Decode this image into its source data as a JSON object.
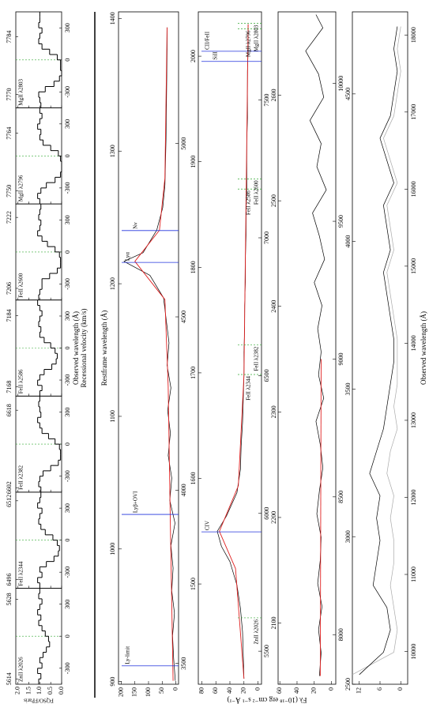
{
  "chart_data": [
    {
      "type": "step",
      "xlabel": "Recessional velocity (km/s)",
      "wlabel": "Observed wavelength (Å)",
      "ylabel": "FQSO/FParis",
      "xlim": [
        -450,
        450
      ],
      "xticks": [
        -300,
        0,
        300
      ],
      "ylim": [
        0,
        2.1
      ],
      "yticks": [
        {
          "value": 0,
          "label": "0.0"
        },
        {
          "value": 0.5,
          "label": "0.5"
        },
        {
          "value": 1,
          "label": "1.0"
        },
        {
          "value": 1.5,
          "label": "1.5"
        },
        {
          "value": 2,
          "label": "2.0"
        }
      ],
      "color": "#000000",
      "panels": [
        {
          "label": "ZnII λ2026",
          "wlim": [
            5613.06,
            5629.94
          ],
          "wticks": [
            5614,
            5628
          ],
          "flux": [
            1.05,
            0.95,
            1.1,
            0.9,
            1.0,
            0.85,
            0.7,
            0.55,
            0.6,
            0.75,
            0.9,
            1.05,
            0.95,
            1.1,
            1.0,
            0.9,
            1.05,
            1.0
          ]
        },
        {
          "label": "FeII λ2344",
          "wlim": [
            6494.24,
            6513.76
          ],
          "wticks": [
            6496,
            6512
          ],
          "flux": [
            1.0,
            1.1,
            0.9,
            1.0,
            0.7,
            0.35,
            0.15,
            0.1,
            0.2,
            0.4,
            0.75,
            0.95,
            1.05,
            1.0,
            0.9,
            1.1,
            1.0,
            0.95
          ]
        },
        {
          "label": "FeII λ2382",
          "wlim": [
            6601.08,
            6620.92
          ],
          "wticks": [
            6602,
            6618
          ],
          "flux": [
            0.95,
            1.05,
            1.0,
            0.85,
            0.5,
            0.15,
            0.05,
            0.05,
            0.1,
            0.3,
            0.6,
            0.9,
            1.0,
            1.1,
            0.95,
            1.0,
            1.05,
            1.0
          ]
        },
        {
          "label": "FeII λ2586",
          "wlim": [
            7165.93,
            7187.47
          ],
          "wticks": [
            7168,
            7184
          ],
          "flux": [
            1.0,
            0.9,
            1.1,
            1.0,
            0.8,
            0.45,
            0.25,
            0.2,
            0.3,
            0.5,
            0.8,
            1.0,
            0.95,
            1.05,
            1.0,
            0.9,
            1.0,
            1.1
          ]
        },
        {
          "label": "FeII λ2600",
          "wlim": [
            7203.37,
            7225.03
          ],
          "wticks": [
            7206,
            7222
          ],
          "flux": [
            1.05,
            1.0,
            0.9,
            0.9,
            0.55,
            0.2,
            0.05,
            0.05,
            0.1,
            0.3,
            0.65,
            0.9,
            1.1,
            1.0,
            0.95,
            1.05,
            1.0,
            0.95
          ]
        },
        {
          "label": "MgII λ2796",
          "wlim": [
            7746.85,
            7770.15
          ],
          "wticks": [
            7750,
            7764
          ],
          "flux": [
            1.0,
            1.1,
            0.95,
            0.7,
            0.3,
            0.05,
            0.0,
            0.0,
            0.05,
            0.15,
            0.5,
            0.85,
            1.0,
            0.95,
            1.1,
            1.0,
            0.9,
            1.0
          ]
        },
        {
          "label": "MgII λ2803",
          "wlim": [
            7766.72,
            7790.08
          ],
          "wticks": [
            7770,
            7784
          ],
          "flux": [
            0.95,
            1.0,
            1.05,
            0.75,
            0.35,
            0.1,
            0.0,
            0.05,
            0.05,
            0.2,
            0.55,
            0.9,
            1.05,
            1.0,
            0.9,
            1.05,
            1.0,
            1.0
          ]
        }
      ]
    },
    {
      "type": "line",
      "x2label": "Restframe wavelength (Å)",
      "ylabel": "Fλ (10⁻¹⁸ erg cm⁻² s⁻¹ Å⁻¹)",
      "xlim": [
        3440,
        5380
      ],
      "xticks": [
        3500,
        4000,
        4500,
        5000
      ],
      "x2lim": [
        898,
        1405
      ],
      "x2ticks": [
        900,
        1000,
        1100,
        1200,
        1300,
        1400
      ],
      "ylim": [
        -10,
        210
      ],
      "yticks": [
        0,
        50,
        100,
        150,
        200
      ],
      "x": [
        3450,
        3515,
        3580,
        3645,
        3710,
        3775,
        3840,
        3905,
        3970,
        4035,
        4100,
        4165,
        4230,
        4295,
        4360,
        4425,
        4490,
        4555,
        4620,
        4660,
        4685,
        4750,
        4815,
        4880,
        4945,
        5010,
        5075,
        5140,
        5205,
        5270,
        5335
      ],
      "series": [
        {
          "color": "#000000",
          "values": [
            2,
            8,
            12,
            5,
            15,
            10,
            18,
            3,
            22,
            15,
            28,
            20,
            30,
            18,
            32,
            25,
            35,
            45,
            95,
            190,
            120,
            70,
            48,
            40,
            38,
            36,
            35,
            34,
            33,
            32,
            32
          ]
        }
      ],
      "continuum": {
        "color": "#e02020",
        "x": [
          3450,
          3900,
          4300,
          4550,
          4660,
          4750,
          4900,
          5335
        ],
        "values": [
          10,
          20,
          28,
          40,
          150,
          60,
          40,
          32
        ]
      },
      "lines": [
        {
          "label": "Ly-limit",
          "x": 3493,
          "color": "#2233dd",
          "style": "solid"
        },
        {
          "label": "Lyβ+OVI",
          "x": 3930,
          "color": "#2233dd",
          "style": "solid"
        },
        {
          "label": "Lyα",
          "x": 4657,
          "color": "#2233dd",
          "style": "solid"
        },
        {
          "label": "Nv",
          "x": 4749,
          "color": "#2233dd",
          "style": "solid"
        }
      ]
    },
    {
      "type": "line",
      "xlim": [
        5380,
        7820
      ],
      "xticks": [
        5500,
        6000,
        6500,
        7000,
        7500
      ],
      "x2lim": [
        1405,
        2042
      ],
      "x2ticks": [
        1500,
        1600,
        1700,
        1800,
        1900,
        2000
      ],
      "ylim": [
        -5,
        85
      ],
      "yticks": [
        0,
        20,
        40,
        60,
        80
      ],
      "x": [
        5400,
        5485,
        5570,
        5655,
        5740,
        5825,
        5880,
        5935,
        5990,
        6075,
        6160,
        6245,
        6330,
        6415,
        6500,
        6585,
        6670,
        6755,
        6840,
        6925,
        7010,
        7095,
        7180,
        7265,
        7350,
        7435,
        7520,
        7605,
        7690,
        7775
      ],
      "series": [
        {
          "color": "#000000",
          "values": [
            20,
            21,
            22,
            25,
            30,
            40,
            52,
            58,
            45,
            30,
            25,
            24,
            22,
            21,
            20,
            20,
            19,
            19,
            18,
            18,
            17,
            17,
            16,
            16,
            16,
            15,
            15,
            15,
            14,
            14
          ]
        }
      ],
      "continuum": {
        "color": "#e02020",
        "x": [
          5400,
          5800,
          5935,
          6100,
          6500,
          7775
        ],
        "values": [
          20,
          32,
          55,
          28,
          20,
          14
        ]
      },
      "lines": [
        {
          "label": "CIV",
          "x": 5933,
          "color": "#2233dd",
          "style": "solid"
        },
        {
          "label": "SiII",
          "x": 7640,
          "color": "#2233dd",
          "style": "solid"
        },
        {
          "label": "CII/FeII",
          "x": 7677,
          "color": "#2233dd",
          "style": "solid"
        },
        {
          "label": "ZnII λ2026",
          "x": 5621,
          "color": "#33aa33",
          "style": "dashed"
        },
        {
          "label": "FeII λ2344",
          "x": 6504,
          "color": "#33aa33",
          "style": "dashed"
        },
        {
          "label": "FeII λ2382",
          "x": 6611,
          "color": "#33aa33",
          "style": "dashed"
        },
        {
          "label": "FeII λ2586",
          "x": 7177,
          "color": "#33aa33",
          "style": "dashed"
        },
        {
          "label": "FeII λ2600",
          "x": 7214,
          "color": "#33aa33",
          "style": "dashed"
        },
        {
          "label": "MgII λ2796",
          "x": 7758,
          "color": "#33aa33",
          "style": "dashed"
        },
        {
          "label": "MgII λ2803",
          "x": 7778,
          "color": "#33aa33",
          "style": "dashed"
        }
      ]
    },
    {
      "type": "line",
      "xlim": [
        7820,
        10260
      ],
      "xticks": [
        8000,
        8500,
        9000,
        9500,
        10000
      ],
      "x2lim": [
        2042,
        2679
      ],
      "x2ticks": [
        2100,
        2200,
        2300,
        2400,
        2500,
        2600
      ],
      "ylim": [
        -5,
        62
      ],
      "yticks": [
        0,
        20,
        40,
        60
      ],
      "x": [
        7850,
        7934,
        8018,
        8102,
        8186,
        8270,
        8354,
        8438,
        8522,
        8606,
        8690,
        8774,
        8858,
        8942,
        9026,
        9110,
        9194,
        9278,
        9362,
        9446,
        9530,
        9614,
        9698,
        9782,
        9866,
        9950,
        10034,
        10118,
        10202,
        10250
      ],
      "series": [
        {
          "color": "#000000",
          "values": [
            14,
            12,
            15,
            11,
            16,
            13,
            12,
            17,
            14,
            10,
            13,
            18,
            9,
            15,
            12,
            16,
            11,
            20,
            8,
            14,
            22,
            6,
            17,
            12,
            25,
            9,
            15,
            30,
            10,
            18
          ]
        }
      ],
      "continuum": {
        "color": "#e02020",
        "x": [
          7850,
          9000
        ],
        "values": [
          13,
          12
        ]
      },
      "lines": []
    },
    {
      "type": "line",
      "xlabel": "Observed wavelength (Å)",
      "xlim": [
        9575,
        18300
      ],
      "xticks": [
        10000,
        11000,
        12000,
        13000,
        14000,
        15000,
        16000,
        17000,
        18000
      ],
      "x2lim": [
        2500,
        4778
      ],
      "x2ticks": [
        2500,
        3000,
        3500,
        4000,
        4500
      ],
      "ylim": [
        -2,
        14
      ],
      "yticks": [
        0,
        6,
        12
      ],
      "x": [
        9700,
        9990,
        10280,
        10570,
        10860,
        11150,
        11440,
        11730,
        12020,
        12310,
        12600,
        12890,
        13180,
        13470,
        13760,
        14050,
        14340,
        14630,
        14920,
        15210,
        15500,
        15790,
        16080,
        16370,
        16660,
        16950,
        17240,
        17530,
        17820,
        18110
      ],
      "series": [
        {
          "color": "#aaaaaa",
          "values": [
            14,
            2,
            1,
            2,
            3,
            2,
            2,
            3,
            2,
            4,
            3,
            1,
            2,
            1,
            1,
            1,
            2,
            3,
            4,
            2,
            3,
            4,
            1,
            3,
            5,
            2,
            1,
            0,
            1,
            0
          ]
        },
        {
          "color": "#000000",
          "values": [
            12,
            5,
            3,
            4,
            8,
            7,
            6,
            7,
            6,
            9,
            7,
            5,
            4,
            3,
            2,
            2,
            3,
            4,
            5,
            3,
            4,
            5,
            2,
            4,
            6,
            3,
            2,
            1,
            2,
            1
          ]
        }
      ],
      "lines": []
    }
  ]
}
